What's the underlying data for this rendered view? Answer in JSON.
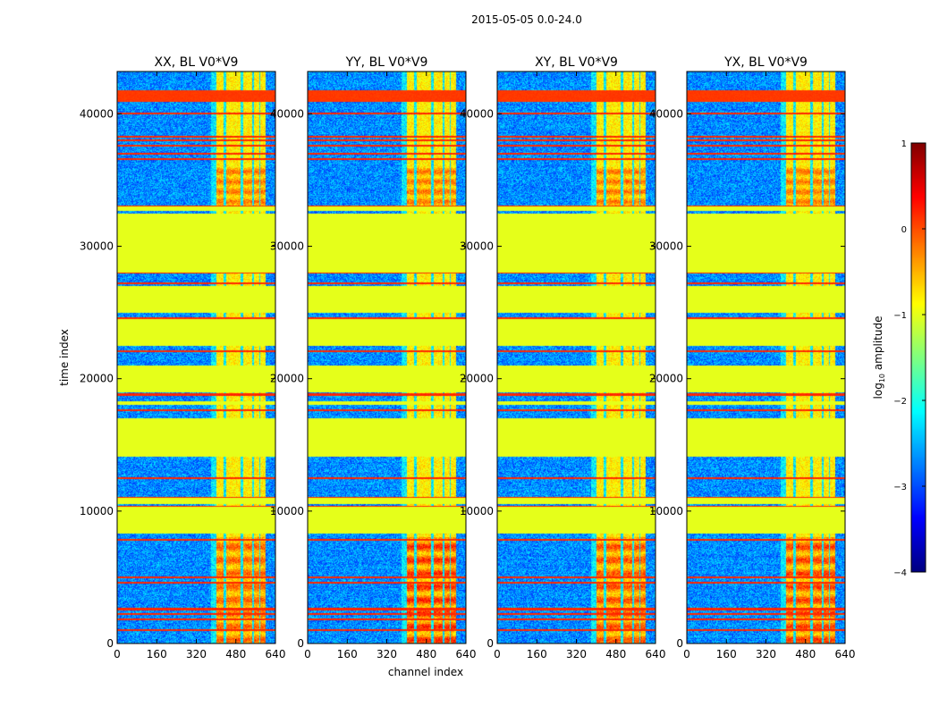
{
  "figure": {
    "title": "2015-05-05 0.0-24.0",
    "xlabel": "channel index",
    "ylabel": "time index"
  },
  "chart_data": {
    "type": "heatmap",
    "title": "2015-05-05 0.0-24.0",
    "xlabel": "channel index",
    "ylabel": "time index",
    "xlim": [
      0,
      640
    ],
    "ylim": [
      0,
      43200
    ],
    "xticks": [
      0,
      160,
      320,
      480,
      640
    ],
    "yticks": [
      0,
      10000,
      20000,
      30000,
      40000
    ],
    "panels": [
      {
        "name": "XX, BL V0*V9",
        "pol": "XX",
        "strong_bottom": 0.55
      },
      {
        "name": "YY, BL V0*V9",
        "pol": "YY",
        "strong_bottom": 0.85
      },
      {
        "name": "XY, BL V0*V9",
        "pol": "XY",
        "strong_bottom": 0.65
      },
      {
        "name": "YX, BL V0*V9",
        "pol": "YX",
        "strong_bottom": 0.75
      }
    ],
    "flagged_time_ranges": [
      [
        8300,
        10300
      ],
      [
        10550,
        11000
      ],
      [
        14100,
        17000
      ],
      [
        18000,
        18300
      ],
      [
        19000,
        21000
      ],
      [
        22500,
        24500
      ],
      [
        25000,
        27000
      ],
      [
        28000,
        32500
      ],
      [
        32700,
        33000
      ]
    ],
    "flagged_value_log10": -1.0,
    "rfi_time_lines": [
      1000,
      1800,
      2200,
      2600,
      4600,
      5000,
      7800,
      9800,
      10300,
      11000,
      12500,
      15000,
      17600,
      18800,
      19100,
      22100,
      24600,
      26000,
      27200,
      28000,
      30000,
      33000,
      36600,
      37000,
      37600,
      38000,
      38300,
      40000,
      41300,
      41500
    ],
    "strong_rfi_band": [
      40900,
      41800
    ],
    "bright_channel_range": [
      400,
      600
    ],
    "bright_channel_gaps": [
      [
        430,
        440
      ],
      [
        500,
        510
      ],
      [
        545,
        555
      ],
      [
        575,
        580
      ]
    ],
    "colorbar": {
      "label": "log10 amplitude",
      "label_main": "log",
      "label_sub": "10",
      "label_rest": " amplitude",
      "colormap": "jet",
      "range": [
        -4,
        1
      ],
      "ticks": [
        1,
        0,
        -1,
        -2,
        -3,
        -4
      ],
      "tick_labels": [
        "1",
        "0",
        "−1",
        "−2",
        "−3",
        "−4"
      ]
    }
  }
}
